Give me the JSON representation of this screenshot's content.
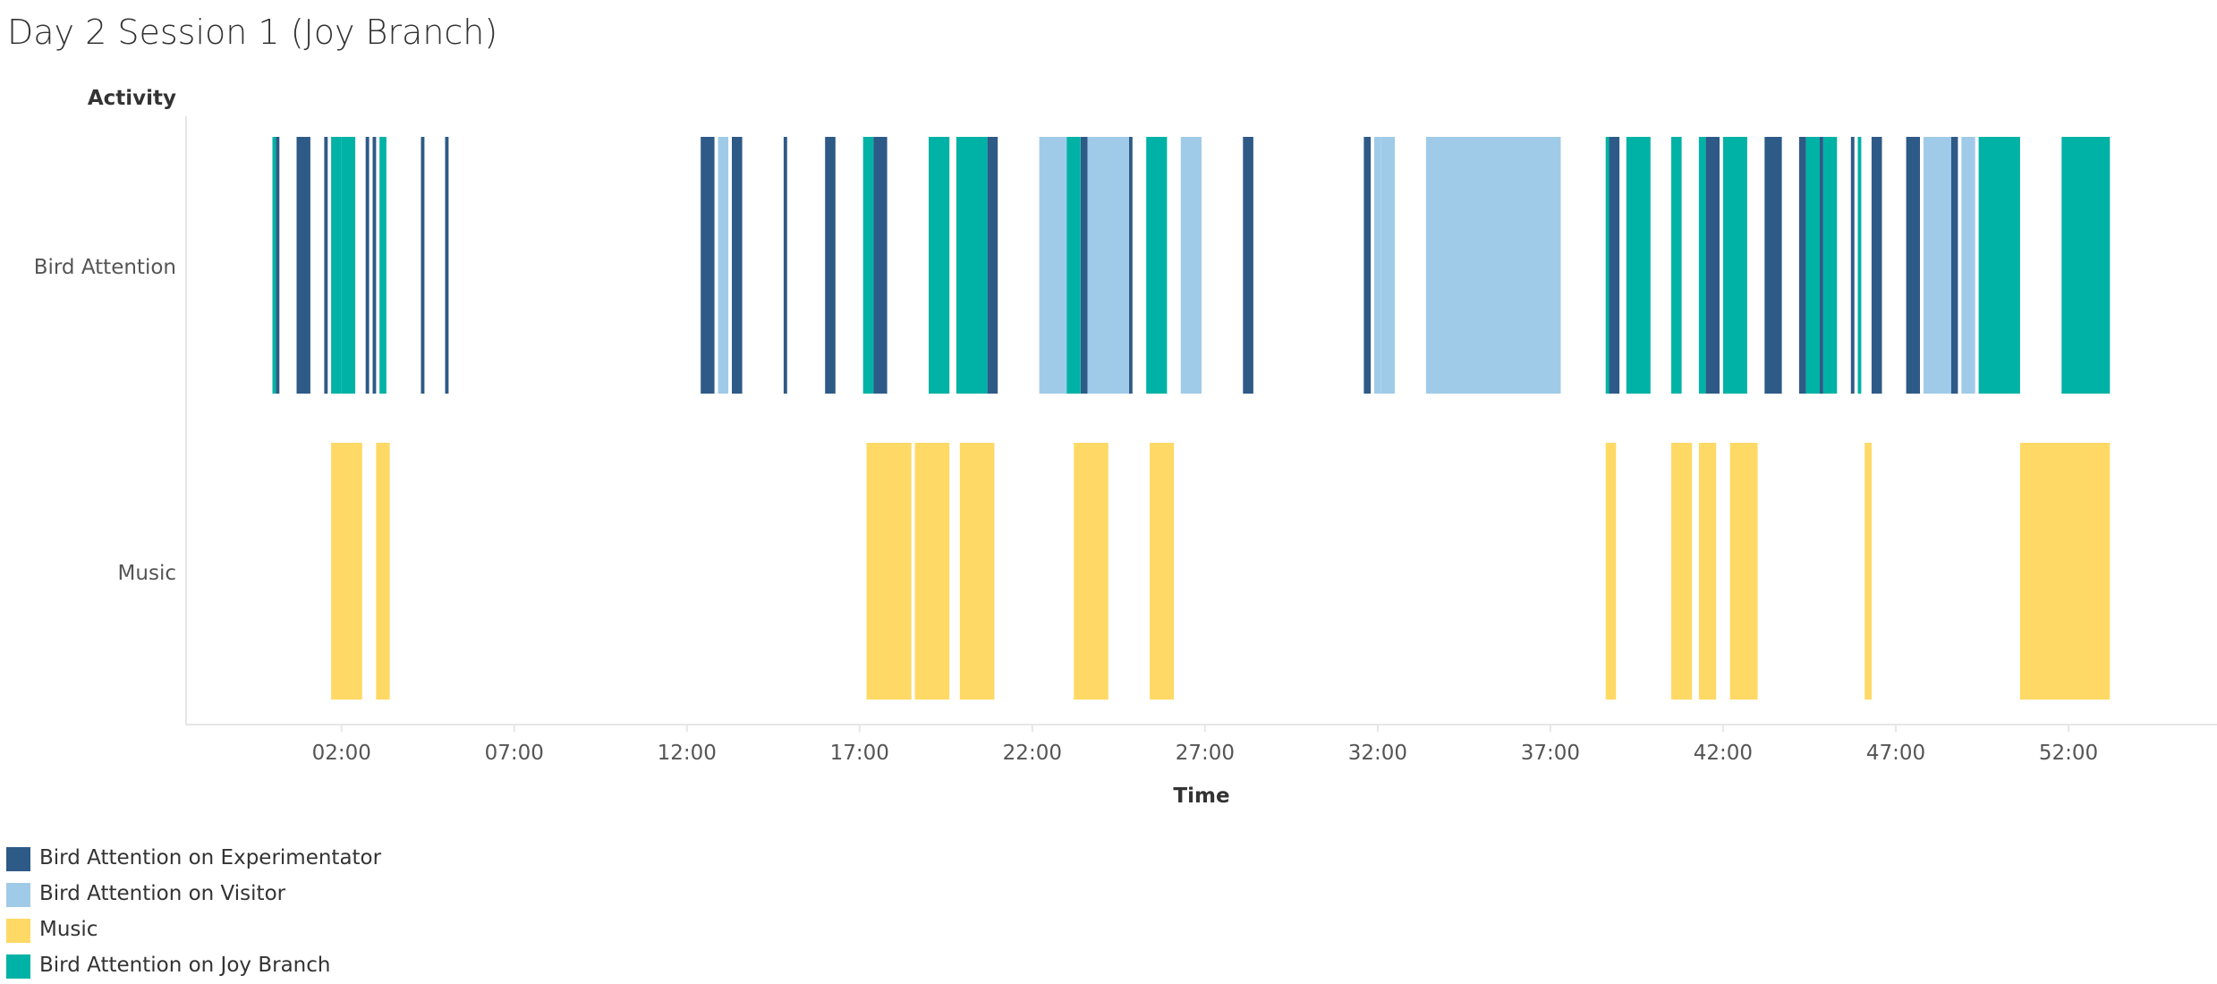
{
  "title": "Day 2 Session 1 (Joy Branch)",
  "colors": {
    "experimentator": "#2e5a87",
    "visitor": "#a0cbe8",
    "music": "#ffd966",
    "joy_branch": "#00b2a5",
    "axis": "#e6e6e6",
    "text": "#555555"
  },
  "legend": [
    {
      "label": "Bird Attention on Experimentator",
      "key": "experimentator"
    },
    {
      "label": "Bird Attention on Visitor",
      "key": "visitor"
    },
    {
      "label": "Music",
      "key": "music"
    },
    {
      "label": "Bird Attention on Joy Branch",
      "key": "joy_branch"
    }
  ],
  "chart_data": {
    "type": "gantt",
    "title": "Day 2 Session 1 (Joy Branch)",
    "xlabel": "Time",
    "ylabel": "Activity",
    "categories": [
      "Bird Attention",
      "Music"
    ],
    "xlim_minutes": [
      -2.5,
      56.3
    ],
    "x_ticks": [
      {
        "label": "02:00",
        "minutes": 2
      },
      {
        "label": "07:00",
        "minutes": 7
      },
      {
        "label": "12:00",
        "minutes": 12
      },
      {
        "label": "17:00",
        "minutes": 17
      },
      {
        "label": "22:00",
        "minutes": 22
      },
      {
        "label": "27:00",
        "minutes": 27
      },
      {
        "label": "32:00",
        "minutes": 32
      },
      {
        "label": "37:00",
        "minutes": 37
      },
      {
        "label": "42:00",
        "minutes": 42
      },
      {
        "label": "47:00",
        "minutes": 47
      },
      {
        "label": "52:00",
        "minutes": 52
      }
    ],
    "grid": false,
    "legend_position": "bottom-left",
    "series": [
      {
        "name": "Bird Attention on Experimentator",
        "color_key": "experimentator",
        "row": "Bird Attention",
        "intervals": [
          [
            0.1,
            0.2
          ],
          [
            0.7,
            1.1
          ],
          [
            1.5,
            1.6
          ],
          [
            2.7,
            2.8
          ],
          [
            2.9,
            3.0
          ],
          [
            4.3,
            4.4
          ],
          [
            5.0,
            5.1
          ],
          [
            12.4,
            12.8
          ],
          [
            13.3,
            13.6
          ],
          [
            14.8,
            14.9
          ],
          [
            16.0,
            16.3
          ],
          [
            17.4,
            17.8
          ],
          [
            19.1,
            19.2
          ],
          [
            20.7,
            21.0
          ],
          [
            23.4,
            23.6
          ],
          [
            24.8,
            24.9
          ],
          [
            28.1,
            28.4
          ],
          [
            31.6,
            31.8
          ],
          [
            38.7,
            39.0
          ],
          [
            41.5,
            41.9
          ],
          [
            43.2,
            43.7
          ],
          [
            44.2,
            44.4
          ],
          [
            44.8,
            44.9
          ],
          [
            45.7,
            45.8
          ],
          [
            46.3,
            46.6
          ],
          [
            47.3,
            47.7
          ],
          [
            48.6,
            48.8
          ],
          [
            49.6,
            49.7
          ],
          [
            52.6,
            52.9
          ]
        ]
      },
      {
        "name": "Bird Attention on Visitor",
        "color_key": "visitor",
        "row": "Bird Attention",
        "intervals": [
          [
            12.9,
            13.2
          ],
          [
            22.2,
            23.0
          ],
          [
            23.6,
            24.8
          ],
          [
            26.3,
            26.9
          ],
          [
            31.9,
            32.1
          ],
          [
            32.1,
            32.5
          ],
          [
            33.4,
            37.3
          ],
          [
            47.8,
            48.6
          ],
          [
            48.9,
            49.3
          ]
        ]
      },
      {
        "name": "Music",
        "color_key": "music",
        "row": "Music",
        "intervals": [
          [
            1.7,
            2.6
          ],
          [
            3.0,
            3.4
          ],
          [
            17.2,
            18.5
          ],
          [
            18.6,
            19.6
          ],
          [
            19.9,
            20.9
          ],
          [
            23.2,
            24.2
          ],
          [
            25.4,
            26.1
          ],
          [
            38.6,
            38.9
          ],
          [
            40.5,
            41.1
          ],
          [
            41.3,
            41.8
          ],
          [
            42.2,
            43.0
          ],
          [
            46.1,
            46.3
          ],
          [
            50.6,
            53.2
          ]
        ]
      },
      {
        "name": "Bird Attention on Joy Branch",
        "color_key": "joy_branch",
        "row": "Bird Attention",
        "intervals": [
          [
            0.0,
            0.1
          ],
          [
            1.7,
            2.0
          ],
          [
            2.0,
            2.4
          ],
          [
            3.1,
            3.3
          ],
          [
            17.1,
            17.4
          ],
          [
            19.0,
            19.6
          ],
          [
            19.8,
            20.7
          ],
          [
            23.0,
            23.4
          ],
          [
            25.3,
            25.9
          ],
          [
            38.6,
            38.7
          ],
          [
            39.2,
            39.9
          ],
          [
            40.5,
            40.8
          ],
          [
            41.3,
            41.5
          ],
          [
            42.0,
            42.7
          ],
          [
            44.4,
            44.8
          ],
          [
            44.9,
            45.3
          ],
          [
            45.9,
            46.0
          ],
          [
            49.4,
            50.6
          ],
          [
            51.8,
            53.2
          ]
        ]
      }
    ]
  }
}
